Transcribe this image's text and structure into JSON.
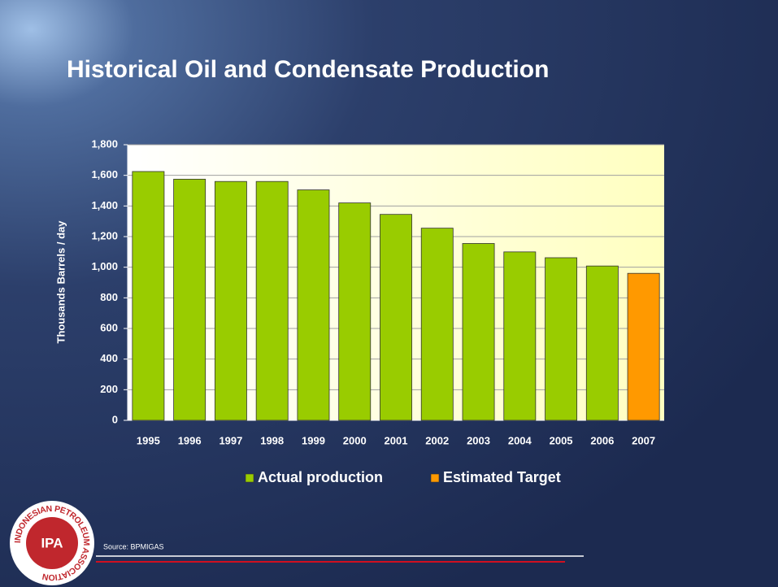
{
  "chart_data": {
    "type": "bar",
    "title": "Historical Oil and Condensate Production",
    "y_label": "Thousands Barrels / day",
    "categories": [
      "1995",
      "1996",
      "1997",
      "1998",
      "1999",
      "2000",
      "2001",
      "2002",
      "2003",
      "2004",
      "2005",
      "2006",
      "2007"
    ],
    "series": [
      {
        "name": "Actual production",
        "color": "#99cc00",
        "values": [
          1625,
          1575,
          1560,
          1560,
          1505,
          1420,
          1345,
          1255,
          1155,
          1100,
          1062,
          1008,
          null
        ]
      },
      {
        "name": "Estimated Target",
        "color": "#ff9900",
        "values": [
          null,
          null,
          null,
          null,
          null,
          null,
          null,
          null,
          null,
          null,
          null,
          null,
          960
        ]
      }
    ],
    "ylim": [
      0,
      1800
    ],
    "yticks": [
      0,
      200,
      400,
      600,
      800,
      {
        "value": 1000,
        "label": "1,000"
      },
      {
        "value": 1200,
        "label": "1,200"
      },
      {
        "value": 1400,
        "label": "1,400"
      },
      {
        "value": 1600,
        "label": "1,600"
      },
      {
        "value": 1800,
        "label": "1,800"
      }
    ],
    "grid": true,
    "legend": "bottom",
    "source": "Source: BPMIGAS",
    "logo": {
      "text": "IPA",
      "ring_text": "INDONESIAN PETROLEUM ASSOCIATION"
    }
  }
}
